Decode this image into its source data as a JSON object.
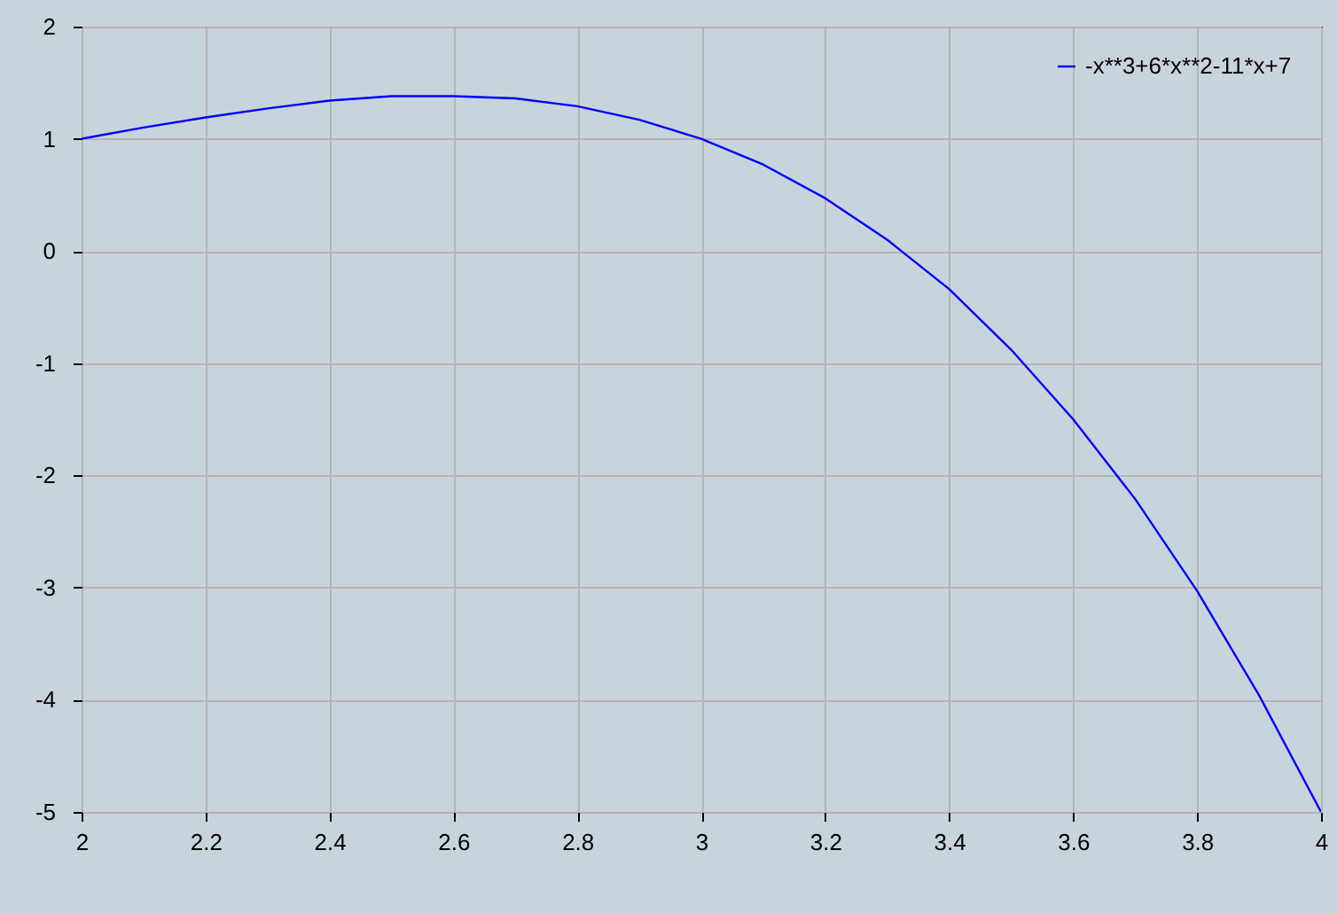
{
  "chart_data": {
    "type": "line",
    "x": [
      2,
      2.1,
      2.2,
      2.3,
      2.4,
      2.5,
      2.6,
      2.7,
      2.8,
      2.9,
      3,
      3.1,
      3.2,
      3.3,
      3.4,
      3.5,
      3.6,
      3.7,
      3.8,
      3.9,
      4
    ],
    "series": [
      {
        "name": "-x**3+6*x**2-11*x+7",
        "color": "#0000ff",
        "values": [
          1,
          1.1,
          1.19,
          1.27,
          1.34,
          1.38,
          1.38,
          1.36,
          1.29,
          1.17,
          1,
          0.77,
          0.47,
          0.1,
          -0.34,
          -0.88,
          -1.5,
          -2.21,
          -3.03,
          -3.96,
          -5
        ]
      }
    ],
    "xlim": [
      2,
      4
    ],
    "ylim": [
      -5,
      2
    ],
    "xticks": [
      2,
      2.2,
      2.4,
      2.6,
      2.8,
      3,
      3.2,
      3.4,
      3.6,
      3.8,
      4
    ],
    "yticks": [
      -5,
      -4,
      -3,
      -2,
      -1,
      0,
      1,
      2
    ],
    "grid": true,
    "legend": "top right"
  }
}
